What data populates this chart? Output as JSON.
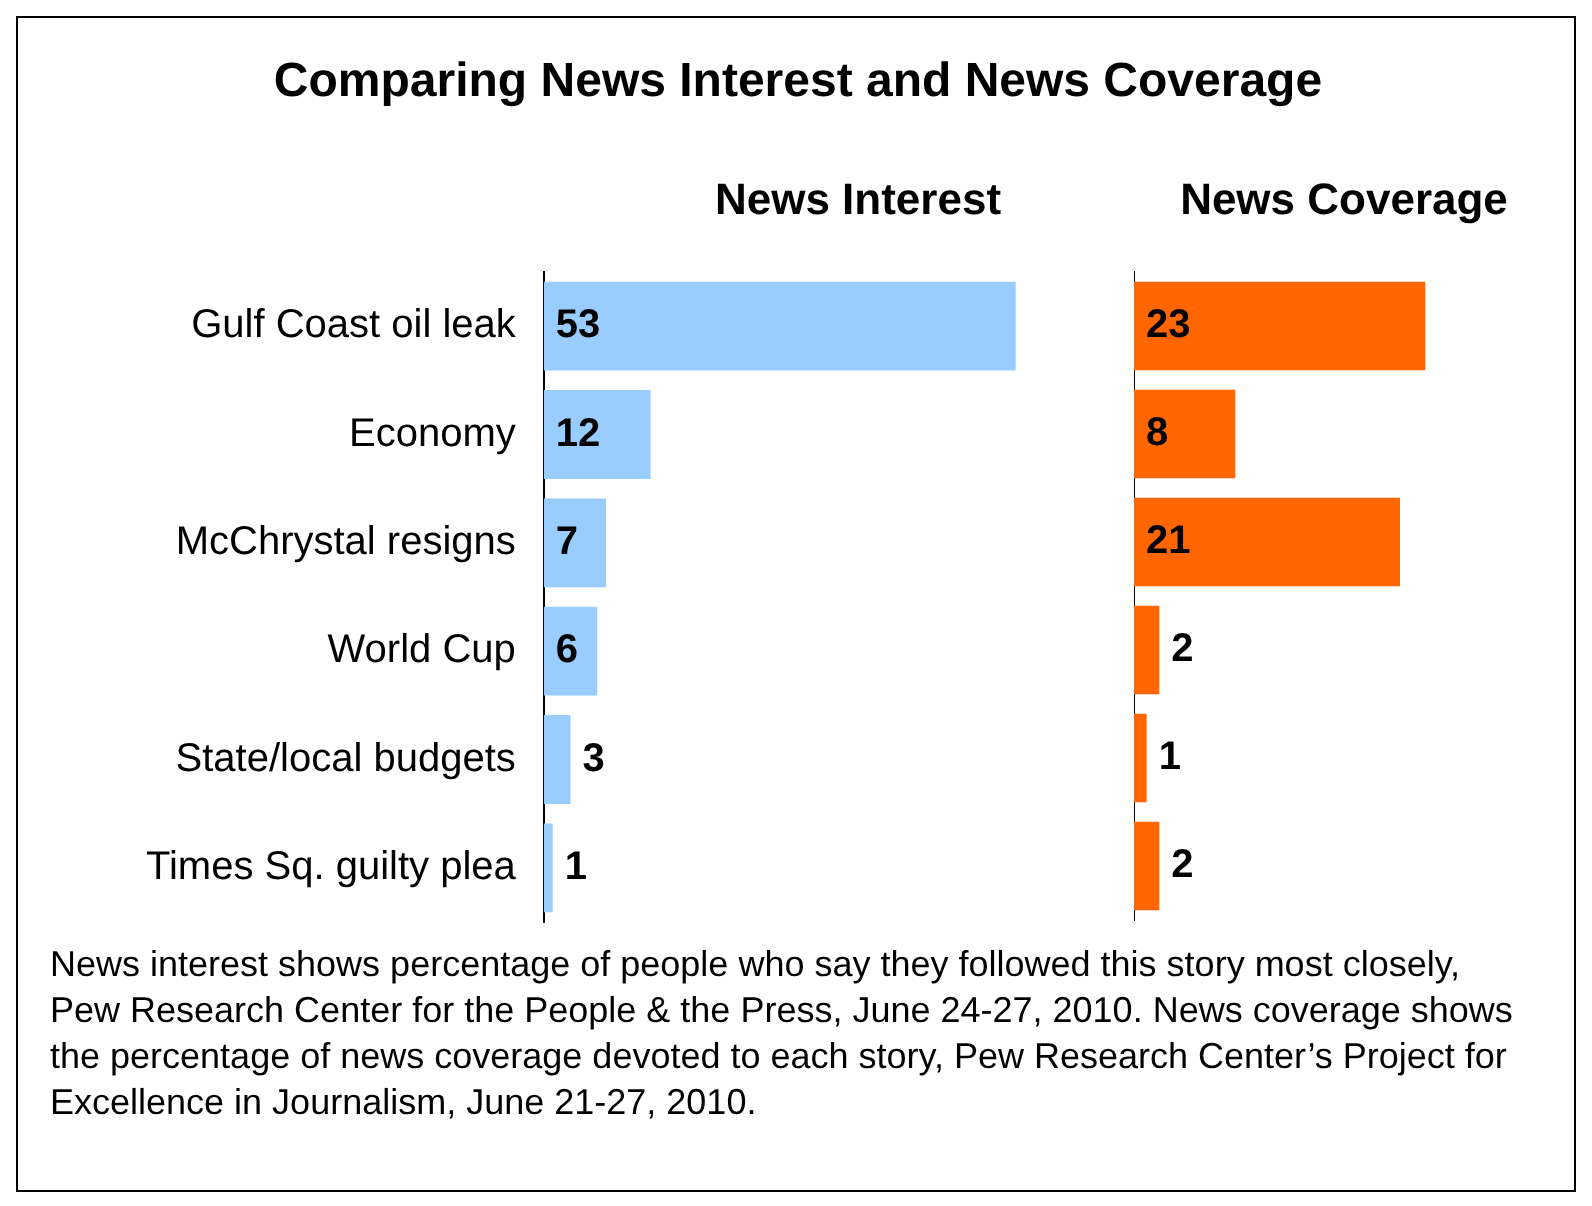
{
  "chart_data": [
    {
      "type": "bar",
      "orientation": "horizontal",
      "title": "Comparing News Interest and News Coverage",
      "subtitle": "News Interest",
      "categories": [
        "Gulf Coast oil leak",
        "Economy",
        "McChrystal resigns",
        "World Cup",
        "State/local budgets",
        "Times Sq. guilty plea"
      ],
      "values": [
        53,
        12,
        7,
        6,
        3,
        1
      ],
      "color": "#99ccff",
      "data_labels": true,
      "tick_labels": "y",
      "annotations": [
        "News interest shows percentage of people who say they followed this story most closely, Pew Research Center for the People & the Press, June 24-27, 2010. News coverage shows the percentage of news coverage devoted to each story, Pew Research Center’s Project for Excellence in Journalism, June 21-27, 2010."
      ]
    },
    {
      "type": "bar",
      "orientation": "horizontal",
      "title": "News Coverage",
      "categories": [
        null,
        null,
        null,
        null,
        null,
        null
      ],
      "values": [
        23,
        8,
        21,
        2,
        1,
        2
      ],
      "color": "#ff6600",
      "data_labels": true,
      "tick_labels": false
    }
  ]
}
